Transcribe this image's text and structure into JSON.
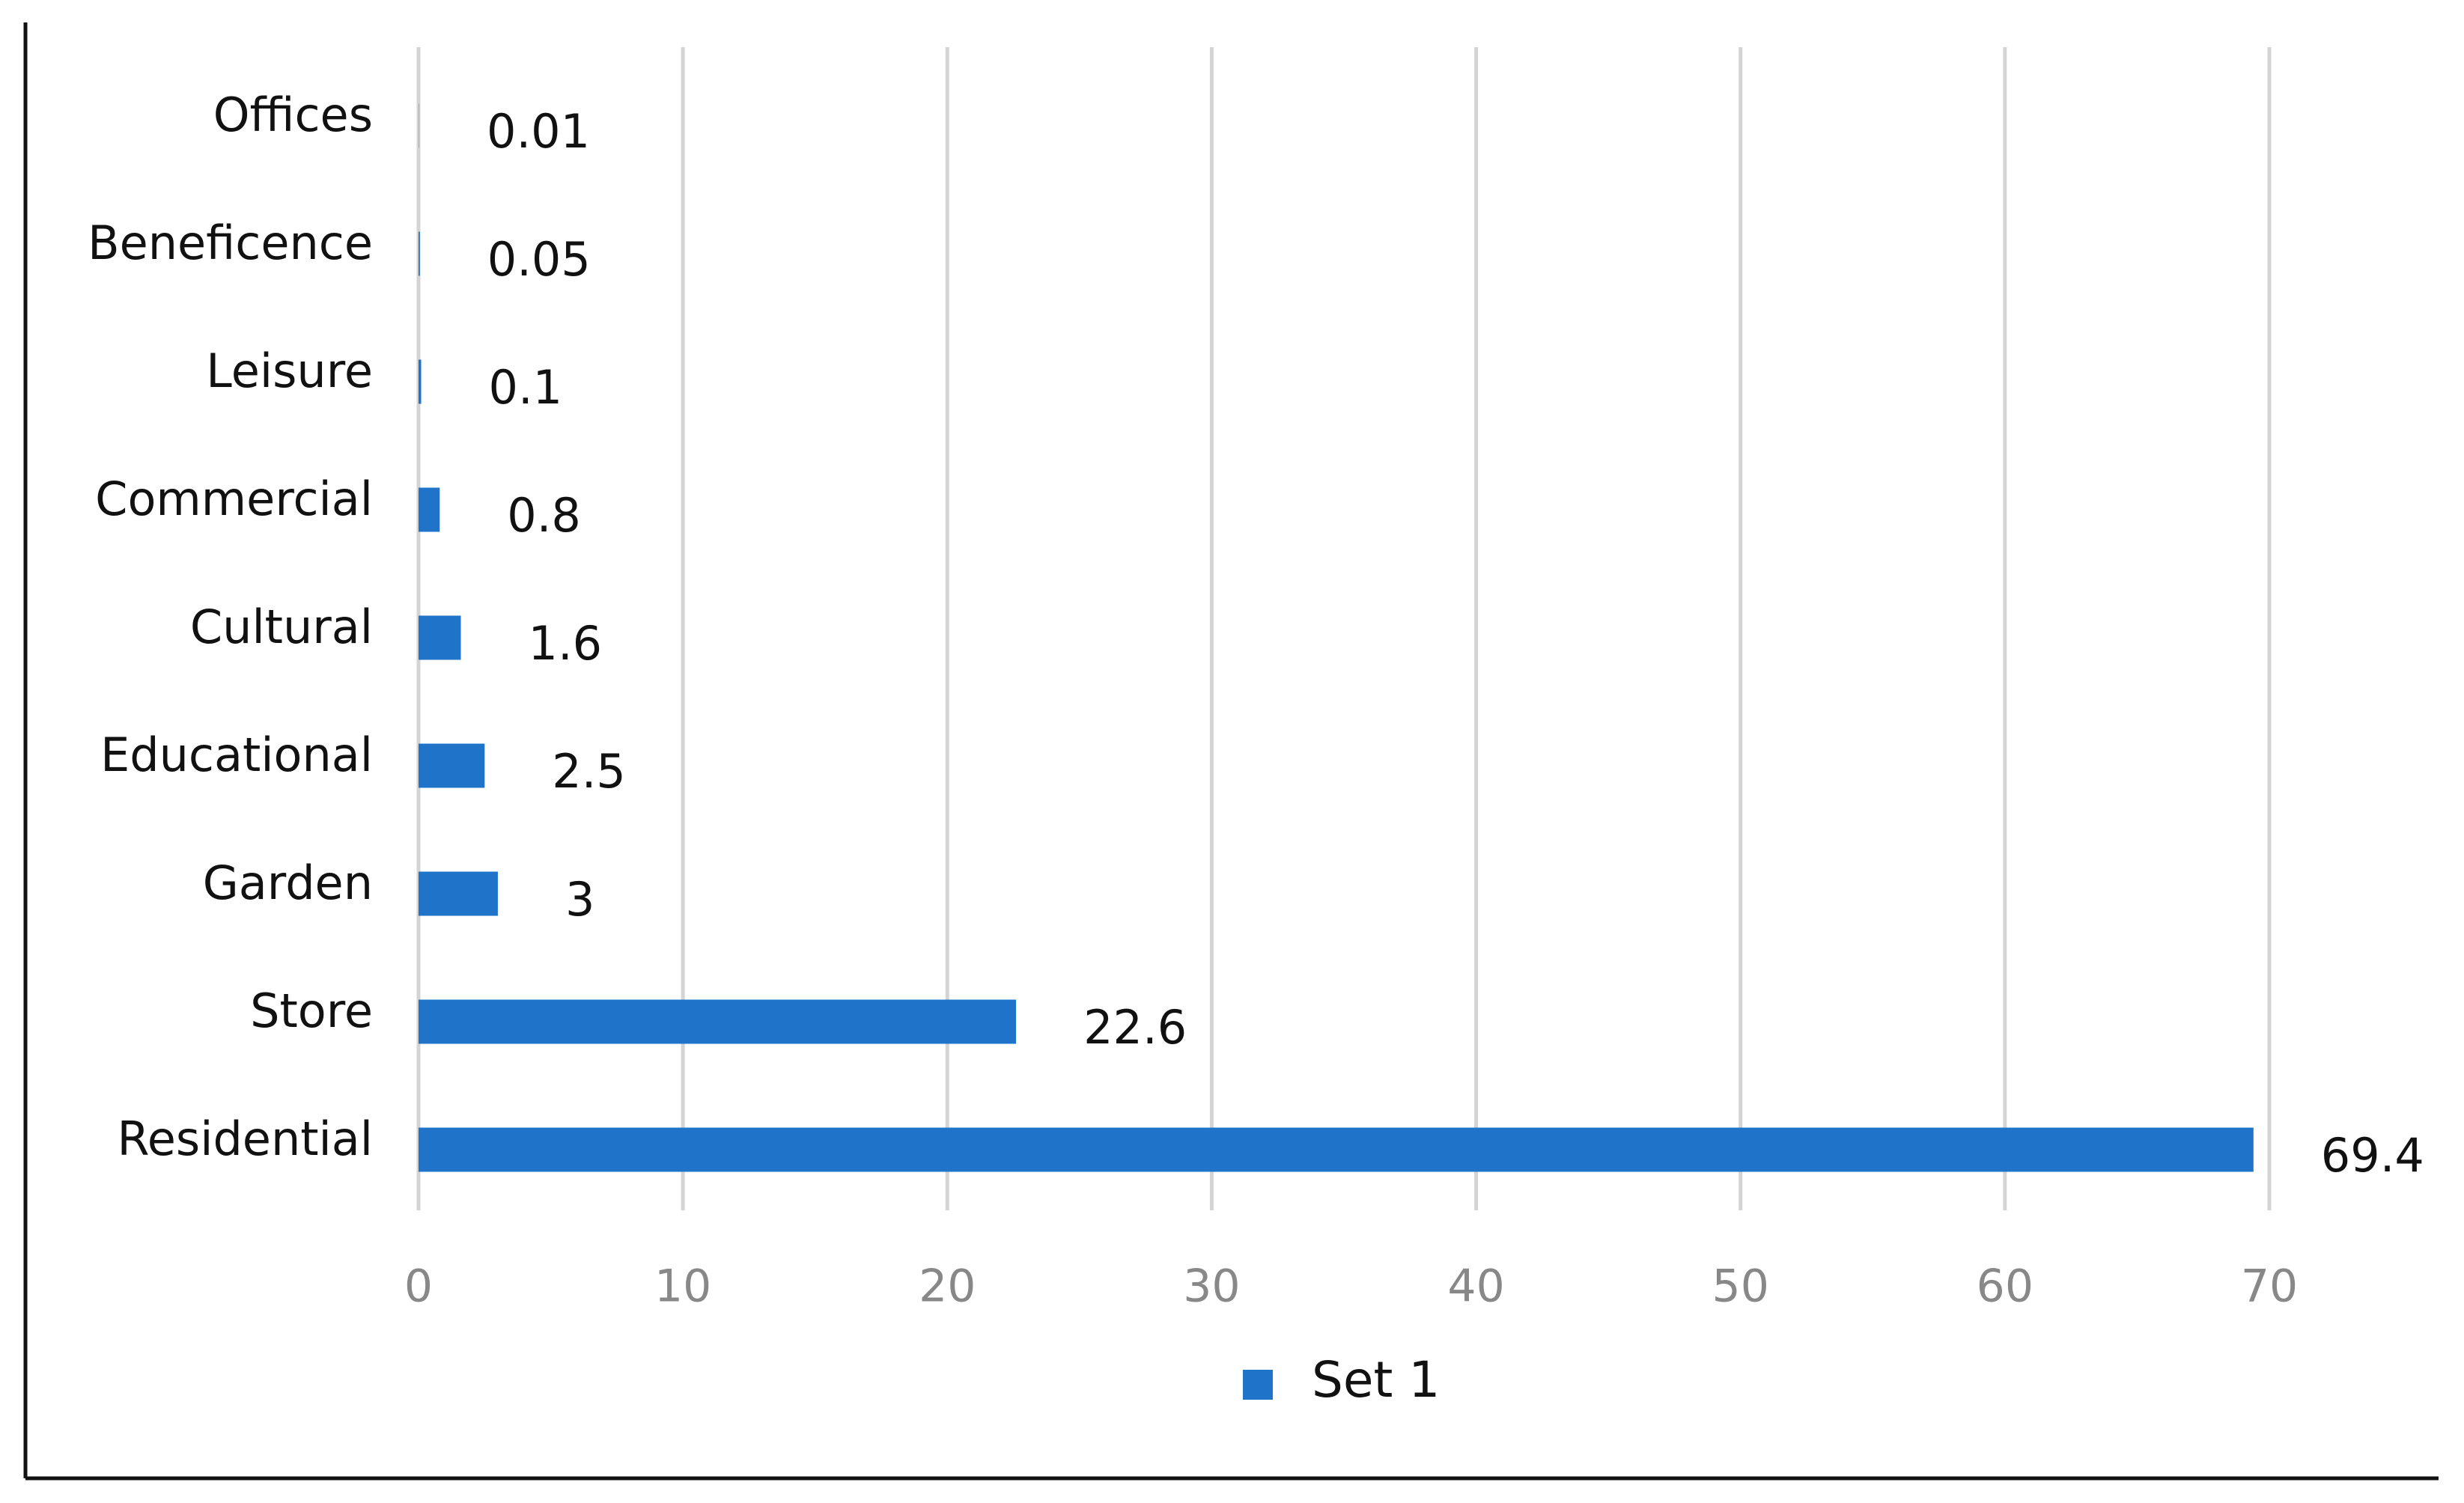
{
  "chart_data": {
    "type": "hbar",
    "categories": [
      "Offices",
      "Beneficence",
      "Leisure",
      "Commercial",
      "Cultural",
      "Educational",
      "Garden",
      "Store",
      "Residential"
    ],
    "series": [
      {
        "name": "Set 1",
        "color": "#1f74c9",
        "values": [
          0.01,
          0.05,
          0.1,
          0.8,
          1.6,
          2.5,
          3,
          22.6,
          69.4
        ]
      }
    ],
    "xlim": [
      0,
      70
    ],
    "xticks": [
      0,
      10,
      20,
      30,
      40,
      50,
      60,
      70
    ],
    "grid": true,
    "legend": "bottom"
  }
}
